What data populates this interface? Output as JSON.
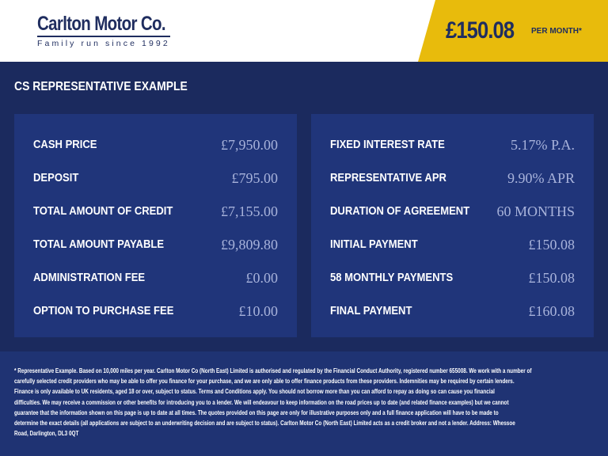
{
  "header": {
    "logo_name": "Carlton Motor Co.",
    "logo_tagline": "Family run since 1992",
    "price": "£150.08",
    "price_suffix": "PER MONTH*"
  },
  "colors": {
    "navy": "#1b2a5e",
    "panel": "#20357a",
    "yellow": "#e8bb0c",
    "value": "#a8b3db"
  },
  "title": "CS REPRESENTATIVE EXAMPLE",
  "left": [
    {
      "label": "CASH PRICE",
      "value": "£7,950.00"
    },
    {
      "label": "DEPOSIT",
      "value": "£795.00"
    },
    {
      "label": "TOTAL AMOUNT OF CREDIT",
      "value": "£7,155.00"
    },
    {
      "label": "TOTAL AMOUNT PAYABLE",
      "value": "£9,809.80"
    },
    {
      "label": "ADMINISTRATION FEE",
      "value": "£0.00"
    },
    {
      "label": "OPTION TO PURCHASE FEE",
      "value": "£10.00"
    }
  ],
  "right": [
    {
      "label": "FIXED INTEREST RATE",
      "value": "5.17% P.A."
    },
    {
      "label": "REPRESENTATIVE APR",
      "value": "9.90% APR"
    },
    {
      "label": "DURATION OF AGREEMENT",
      "value": "60 MONTHS"
    },
    {
      "label": "INITIAL PAYMENT",
      "value": "£150.08"
    },
    {
      "label": "58 MONTHLY PAYMENTS",
      "value": "£150.08"
    },
    {
      "label": "FINAL PAYMENT",
      "value": "£160.08"
    }
  ],
  "disclaimer": [
    "* Representative Example. Based on 10,000 miles per year. Carlton Motor Co (North East) Limited is authorised and regulated by the Financial Conduct Authority, registered number 655008. We work with a number of",
    "carefully selected credit providers who may be able to offer you finance for your purchase, and we are only able to offer finance products from these providers. Indemnities may be required by certain lenders.",
    "Finance is only available to UK residents, aged 18 or over, subject to status. Terms and Conditions apply. You should not borrow more than you can afford to repay as doing so can cause you financial",
    "difficulties. We may receive a commission or other benefits for introducing you to a lender. We will endeavour to keep information on the road prices up to date (and related finance examples) but we cannot",
    "guarantee that the information shown on this page is up to date at all times. The quotes provided on this page are only for illustrative purposes only and a full finance application will have to be made to",
    "determine the exact details (all applications are subject to an underwriting decision and are subject to status). Carlton Motor Co (North East) Limited acts as a credit broker and not a lender. Address:  Whessoe",
    "Road, Darlington, DL3 0QT"
  ]
}
